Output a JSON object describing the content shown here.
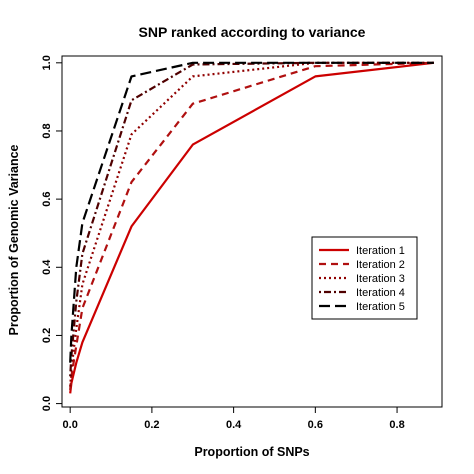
{
  "chart_data": {
    "type": "line",
    "title": "SNP ranked according to variance",
    "xlabel": "Proportion of SNPs",
    "ylabel": "Proportion of Genomic Variance",
    "xlim": [
      -0.02,
      0.91
    ],
    "ylim": [
      -0.01,
      1.02
    ],
    "xticks": [
      0.0,
      0.2,
      0.4,
      0.6,
      0.8
    ],
    "xtick_labels": [
      "0.0",
      "0.2",
      "0.4",
      "0.6",
      "0.8"
    ],
    "yticks": [
      0.0,
      0.2,
      0.4,
      0.6,
      0.8,
      1.0
    ],
    "ytick_labels": [
      "0.0",
      "0.2",
      "0.4",
      "0.6",
      "0.8",
      "1.0"
    ],
    "grid": false,
    "legend_position": "right",
    "series": [
      {
        "name": "Iteration 1",
        "color": "#cc0000",
        "dash": "solid",
        "x": [
          0.0,
          0.003,
          0.015,
          0.03,
          0.15,
          0.3,
          0.6,
          0.89
        ],
        "y": [
          0.03,
          0.06,
          0.12,
          0.18,
          0.52,
          0.76,
          0.96,
          1.0
        ]
      },
      {
        "name": "Iteration 2",
        "color": "#b01010",
        "dash": "dashed",
        "x": [
          0.0,
          0.003,
          0.015,
          0.03,
          0.15,
          0.3,
          0.6,
          0.89
        ],
        "y": [
          0.04,
          0.08,
          0.17,
          0.28,
          0.65,
          0.88,
          0.99,
          1.0
        ]
      },
      {
        "name": "Iteration 3",
        "color": "#900000",
        "dash": "dotted",
        "x": [
          0.0,
          0.003,
          0.015,
          0.03,
          0.15,
          0.3,
          0.6,
          0.89
        ],
        "y": [
          0.05,
          0.1,
          0.22,
          0.35,
          0.79,
          0.96,
          1.0,
          1.0
        ]
      },
      {
        "name": "Iteration 4",
        "color": "#500000",
        "dash": "dotdash",
        "x": [
          0.0,
          0.003,
          0.015,
          0.03,
          0.15,
          0.3,
          0.6,
          0.89
        ],
        "y": [
          0.08,
          0.14,
          0.3,
          0.44,
          0.89,
          0.995,
          1.0,
          1.0
        ]
      },
      {
        "name": "Iteration 5",
        "color": "#000000",
        "dash": "longdash",
        "x": [
          0.0,
          0.003,
          0.015,
          0.03,
          0.15,
          0.3,
          0.6,
          0.89
        ],
        "y": [
          0.12,
          0.2,
          0.4,
          0.53,
          0.96,
          1.0,
          1.0,
          1.0
        ]
      }
    ]
  }
}
